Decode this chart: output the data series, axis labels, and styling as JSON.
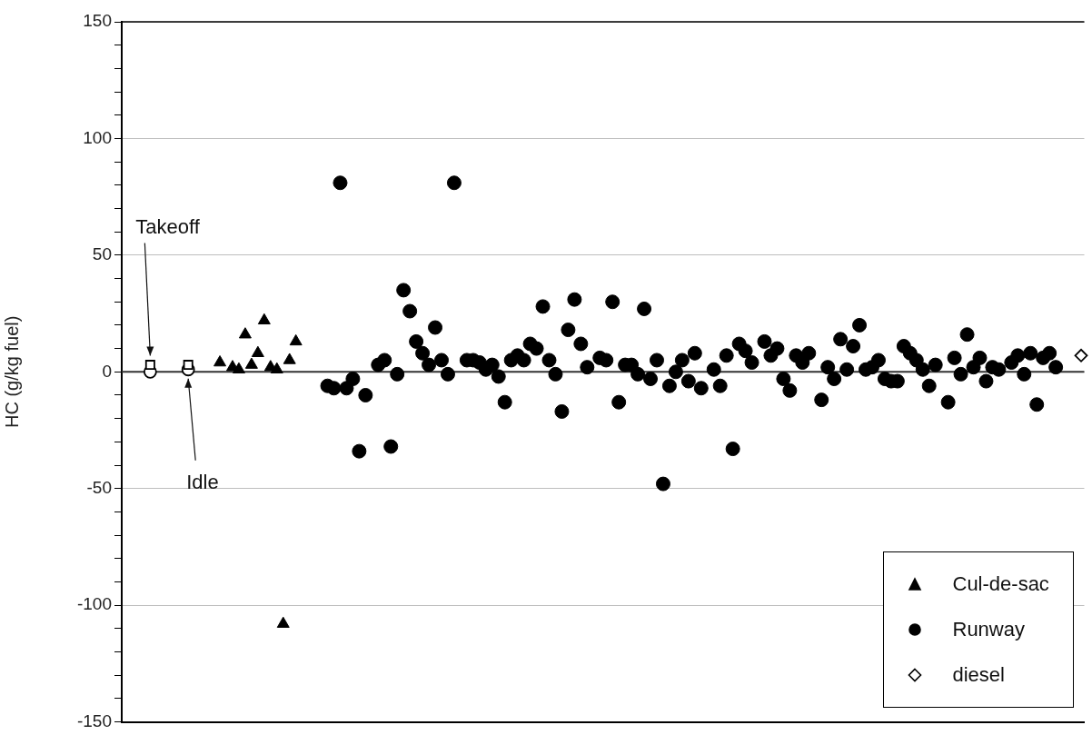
{
  "chart_data": {
    "type": "scatter",
    "ylabel": "HC (g/kg fuel)",
    "categories": [
      null,
      null,
      null,
      null,
      null,
      null,
      null,
      null,
      null,
      null,
      null,
      null,
      null,
      null,
      null,
      null,
      null,
      null,
      null,
      null,
      null,
      null,
      null,
      null,
      null,
      null,
      null,
      null,
      null,
      null,
      null,
      null,
      null,
      null,
      null,
      null,
      null,
      null,
      null,
      null,
      null,
      null,
      null,
      null,
      null,
      null,
      null,
      null,
      null,
      null,
      null,
      null,
      null,
      null,
      null,
      null,
      null,
      null,
      null,
      null,
      null,
      null,
      null,
      null,
      null,
      null,
      null,
      null,
      null,
      null,
      null,
      null,
      null,
      null,
      null,
      null,
      null,
      null,
      null,
      null,
      null,
      null,
      null,
      null,
      null,
      null,
      null,
      null,
      null,
      null,
      null,
      null,
      null,
      null,
      null,
      null,
      null,
      null,
      null,
      null,
      null,
      null,
      null,
      null,
      null,
      null,
      null,
      null,
      null,
      null,
      null,
      null,
      null,
      null,
      null,
      null,
      null,
      null,
      null,
      null,
      null,
      null,
      null,
      null,
      null,
      null,
      null,
      null,
      null,
      null,
      null,
      null,
      null,
      null,
      null,
      null,
      null,
      null,
      null,
      null,
      null,
      null,
      null,
      null,
      null,
      null,
      null,
      null,
      null,
      null,
      null,
      null
    ],
    "series": [
      {
        "name": "Cul-de-sac",
        "color": "#000000",
        "marker": "triangle",
        "values": [
          null,
          null,
          null,
          null,
          null,
          null,
          null,
          null,
          null,
          null,
          null,
          null,
          null,
          null,
          null,
          4,
          null,
          2,
          1,
          16,
          3,
          8,
          22,
          2,
          1,
          -108,
          5,
          13,
          null,
          null,
          null,
          null,
          null,
          null,
          null,
          null,
          null,
          null,
          null,
          null,
          null,
          null,
          null,
          null,
          null,
          null,
          null,
          null,
          null,
          null,
          null,
          null,
          null,
          null,
          null,
          null,
          null,
          null,
          null,
          null,
          null,
          null,
          null,
          null,
          null,
          null,
          null,
          null,
          null,
          null,
          null,
          null,
          null,
          null,
          null,
          null,
          null,
          null,
          null,
          null,
          null,
          null,
          null,
          null,
          null,
          null,
          null,
          null,
          null,
          null,
          null,
          null,
          null,
          null,
          null,
          null,
          null,
          null,
          null,
          null,
          null,
          null,
          null,
          null,
          null,
          null,
          null,
          null,
          null,
          null,
          null,
          null,
          null,
          null,
          null,
          null,
          null,
          null,
          null,
          null,
          null,
          null,
          null,
          null,
          null,
          null,
          null,
          null,
          null,
          null,
          null,
          null,
          null,
          null,
          null,
          null,
          null,
          null,
          null,
          null,
          null,
          null,
          null,
          null,
          null,
          null,
          null,
          null,
          null,
          null,
          null,
          null
        ]
      },
      {
        "name": "Runway",
        "color": "#000000",
        "marker": "circle",
        "values": [
          null,
          null,
          null,
          null,
          null,
          null,
          null,
          null,
          null,
          null,
          null,
          null,
          null,
          null,
          null,
          null,
          null,
          null,
          null,
          null,
          null,
          null,
          null,
          null,
          null,
          null,
          null,
          null,
          null,
          null,
          null,
          null,
          -6,
          -7,
          81,
          -7,
          -3,
          -34,
          -10,
          null,
          3,
          5,
          -32,
          -1,
          35,
          26,
          13,
          8,
          3,
          19,
          5,
          -1,
          81,
          null,
          5,
          5,
          4,
          1,
          3,
          -2,
          -13,
          5,
          7,
          5,
          12,
          10,
          28,
          5,
          -1,
          -17,
          18,
          31,
          12,
          2,
          null,
          6,
          5,
          30,
          -13,
          3,
          3,
          -1,
          27,
          -3,
          5,
          -48,
          -6,
          0,
          5,
          -4,
          8,
          -7,
          null,
          1,
          -6,
          7,
          -33,
          12,
          9,
          4,
          null,
          13,
          7,
          10,
          -3,
          -8,
          7,
          4,
          8,
          null,
          -12,
          2,
          -3,
          14,
          1,
          11,
          20,
          1,
          2,
          5,
          -3,
          -4,
          -4,
          11,
          8,
          5,
          1,
          -6,
          3,
          null,
          -13,
          6,
          -1,
          16,
          2,
          6,
          -4,
          2,
          1,
          null,
          4,
          7,
          -1,
          8,
          -14,
          6,
          8,
          2,
          null,
          null,
          null,
          null
        ]
      },
      {
        "name": "diesel",
        "color": "#ffffff",
        "marker": "diamond",
        "values": [
          null,
          null,
          null,
          null,
          null,
          null,
          null,
          null,
          null,
          null,
          null,
          null,
          null,
          null,
          null,
          null,
          null,
          null,
          null,
          null,
          null,
          null,
          null,
          null,
          null,
          null,
          null,
          null,
          null,
          null,
          null,
          null,
          null,
          null,
          null,
          null,
          null,
          null,
          null,
          null,
          null,
          null,
          null,
          null,
          null,
          null,
          null,
          null,
          null,
          null,
          null,
          null,
          null,
          null,
          null,
          null,
          null,
          null,
          null,
          null,
          null,
          null,
          null,
          null,
          null,
          null,
          null,
          null,
          null,
          null,
          null,
          null,
          null,
          null,
          null,
          null,
          null,
          null,
          null,
          null,
          null,
          null,
          null,
          null,
          null,
          null,
          null,
          null,
          null,
          null,
          null,
          null,
          null,
          null,
          null,
          null,
          null,
          null,
          null,
          null,
          null,
          null,
          null,
          null,
          null,
          null,
          null,
          null,
          null,
          null,
          null,
          null,
          null,
          null,
          null,
          null,
          null,
          null,
          null,
          null,
          null,
          null,
          null,
          null,
          null,
          null,
          null,
          null,
          null,
          null,
          null,
          null,
          null,
          null,
          null,
          null,
          null,
          null,
          null,
          null,
          null,
          null,
          null,
          null,
          null,
          null,
          null,
          null,
          null,
          null,
          null,
          7
        ]
      },
      {
        "color": "#ffffff",
        "marker": "square",
        "values": [
          null,
          null,
          null,
          null,
          3,
          null,
          null,
          null,
          null,
          null,
          3,
          null,
          null,
          null,
          null,
          null,
          null,
          null,
          null,
          null,
          null,
          null,
          null,
          null,
          null,
          null,
          null,
          null,
          null,
          null,
          null,
          null,
          null,
          null,
          null,
          null,
          null,
          null,
          null,
          null,
          null,
          null,
          null,
          null,
          null,
          null,
          null,
          null,
          null,
          null,
          null,
          null,
          null,
          null,
          null,
          null,
          null,
          null,
          null,
          null,
          null,
          null,
          null,
          null,
          null,
          null,
          null,
          null,
          null,
          null,
          null,
          null,
          null,
          null,
          null,
          null,
          null,
          null,
          null,
          null,
          null,
          null,
          null,
          null,
          null,
          null,
          null,
          null,
          null,
          null,
          null,
          null,
          null,
          null,
          null,
          null,
          null,
          null,
          null,
          null,
          null,
          null,
          null,
          null,
          null,
          null,
          null,
          null,
          null,
          null,
          null,
          null,
          null,
          null,
          null,
          null,
          null,
          null,
          null,
          null,
          null,
          null,
          null,
          null,
          null,
          null,
          null,
          null,
          null,
          null,
          null,
          null,
          null,
          null,
          null,
          null,
          null,
          null,
          null,
          null,
          null,
          null,
          null,
          null,
          null,
          null,
          null,
          null,
          null,
          null,
          null,
          null
        ]
      },
      {
        "color": "#ffffff",
        "marker": "circle",
        "values": [
          null,
          null,
          null,
          null,
          0,
          null,
          null,
          null,
          null,
          null,
          1,
          null,
          null,
          null,
          null,
          null,
          null,
          null,
          null,
          null,
          null,
          null,
          null,
          null,
          null,
          null,
          null,
          null,
          null,
          null,
          null,
          null,
          null,
          null,
          null,
          null,
          null,
          null,
          null,
          null,
          null,
          null,
          null,
          null,
          null,
          null,
          null,
          null,
          null,
          null,
          null,
          null,
          null,
          null,
          null,
          null,
          null,
          null,
          null,
          null,
          null,
          null,
          null,
          null,
          null,
          null,
          null,
          null,
          null,
          null,
          null,
          null,
          null,
          null,
          null,
          null,
          null,
          null,
          null,
          null,
          null,
          null,
          null,
          null,
          null,
          null,
          null,
          null,
          null,
          null,
          null,
          null,
          null,
          null,
          null,
          null,
          null,
          null,
          null,
          null,
          null,
          null,
          null,
          null,
          null,
          null,
          null,
          null,
          null,
          null,
          null,
          null,
          null,
          null,
          null,
          null,
          null,
          null,
          null,
          null,
          null,
          null,
          null,
          null,
          null,
          null,
          null,
          null,
          null,
          null,
          null,
          null,
          null,
          null,
          null,
          null,
          null,
          null,
          null,
          null,
          null,
          null,
          null,
          null,
          null,
          null,
          null,
          null,
          null,
          null,
          null,
          null
        ]
      }
    ],
    "ylim": [
      -150,
      150
    ],
    "yticks": [
      -150,
      {
        "value": -140,
        "label": null
      },
      {
        "value": -130,
        "label": null
      },
      {
        "value": -120,
        "label": null
      },
      {
        "value": -110,
        "label": null
      },
      -100,
      {
        "value": -90,
        "label": null
      },
      {
        "value": -80,
        "label": null
      },
      {
        "value": -70,
        "label": null
      },
      {
        "value": -60,
        "label": null
      },
      -50,
      {
        "value": -40,
        "label": null
      },
      {
        "value": -30,
        "label": null
      },
      {
        "value": -20,
        "label": null
      },
      {
        "value": -10,
        "label": null
      },
      0,
      {
        "value": 10,
        "label": null
      },
      {
        "value": 20,
        "label": null
      },
      {
        "value": 30,
        "label": null
      },
      {
        "value": 40,
        "label": null
      },
      50,
      {
        "value": 60,
        "label": null
      },
      {
        "value": 70,
        "label": null
      },
      {
        "value": 80,
        "label": null
      },
      {
        "value": 90,
        "label": null
      },
      100,
      {
        "value": 110,
        "label": null
      },
      {
        "value": 120,
        "label": null
      },
      {
        "value": 130,
        "label": null
      },
      {
        "value": 140,
        "label": null
      },
      150
    ],
    "tick_labels": "y",
    "grid": "y",
    "legend": "bottom right",
    "ref_lines": [
      {
        "axis": "y",
        "value": 0,
        "color": "#333333"
      }
    ],
    "annotations": [
      "Takeoff",
      "Idle"
    ]
  }
}
